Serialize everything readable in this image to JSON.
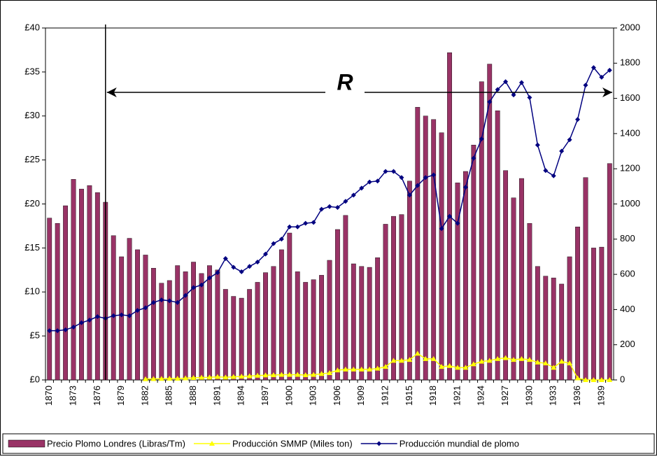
{
  "chart_data": {
    "type": "bar-line",
    "annotation": "R",
    "categories": [
      "1870",
      null,
      null,
      "1873",
      null,
      null,
      "1876",
      null,
      null,
      "1879",
      null,
      null,
      "1882",
      null,
      null,
      "1885",
      null,
      null,
      "1888",
      null,
      null,
      "1891",
      null,
      null,
      "1894",
      null,
      null,
      "1897",
      null,
      null,
      "1900",
      null,
      null,
      "1903",
      null,
      null,
      "1906",
      null,
      null,
      "1909",
      null,
      null,
      "1912",
      null,
      null,
      "1915",
      null,
      null,
      "1918",
      null,
      null,
      "1921",
      null,
      null,
      "1924",
      null,
      null,
      "1927",
      null,
      null,
      "1930",
      null,
      null,
      "1933",
      null,
      null,
      "1936",
      null,
      null,
      "1939",
      null
    ],
    "series": [
      {
        "name": "Precio Plomo Londres (Libras/Tm)",
        "color": "#993366",
        "kind": "bar",
        "values": [
          18.4,
          17.8,
          19.8,
          22.8,
          21.7,
          22.1,
          21.3,
          20.2,
          16.4,
          14.0,
          16.1,
          14.8,
          14.2,
          12.7,
          11.0,
          11.3,
          13.0,
          12.3,
          13.4,
          12.1,
          13.0,
          12.5,
          10.3,
          9.5,
          9.3,
          10.3,
          11.1,
          12.2,
          12.9,
          14.8,
          16.7,
          12.3,
          11.1,
          11.4,
          11.9,
          13.6,
          17.1,
          18.7,
          13.2,
          12.9,
          12.8,
          13.9,
          17.7,
          18.6,
          18.8,
          22.6,
          31.0,
          30.0,
          29.6,
          28.1,
          37.2,
          22.4,
          23.7,
          26.7,
          33.9,
          35.9,
          30.6,
          23.8,
          20.7,
          22.9,
          17.8,
          12.9,
          11.8,
          11.6,
          10.9,
          14.0,
          17.4,
          23.0,
          15.0,
          15.1,
          24.6
        ]
      },
      {
        "name": "Producción SMMP (Miles ton)",
        "color": "#ffff00",
        "kind": "line",
        "marker": "triangle",
        "axis": "y2",
        "values": [
          null,
          null,
          null,
          null,
          null,
          null,
          null,
          null,
          null,
          null,
          null,
          null,
          5,
          6,
          7,
          8,
          8,
          10,
          12,
          14,
          15,
          18,
          15,
          18,
          20,
          22,
          25,
          27,
          28,
          30,
          30,
          30,
          28,
          30,
          35,
          40,
          55,
          60,
          60,
          60,
          60,
          65,
          75,
          110,
          110,
          115,
          150,
          120,
          120,
          75,
          80,
          70,
          70,
          90,
          105,
          110,
          120,
          125,
          115,
          120,
          115,
          100,
          95,
          70,
          105,
          95,
          10,
          0,
          0,
          0,
          0
        ]
      },
      {
        "name": "Producción mundial de plomo",
        "color": "#000080",
        "kind": "line",
        "marker": "diamond",
        "axis": "y2",
        "values": [
          280,
          280,
          285,
          300,
          325,
          340,
          360,
          350,
          365,
          370,
          365,
          395,
          410,
          440,
          455,
          450,
          440,
          480,
          525,
          540,
          580,
          610,
          690,
          640,
          615,
          645,
          670,
          715,
          775,
          800,
          870,
          870,
          890,
          895,
          970,
          985,
          980,
          1015,
          1050,
          1090,
          1125,
          1130,
          1185,
          1185,
          1150,
          1050,
          1105,
          1150,
          1165,
          860,
          930,
          890,
          1095,
          1260,
          1370,
          1580,
          1650,
          1695,
          1620,
          1690,
          1605,
          1335,
          1190,
          1160,
          1300,
          1365,
          1480,
          1675,
          1775,
          1720,
          1760
        ]
      }
    ],
    "ylim": [
      0,
      40
    ],
    "yticks": [
      {
        "value": 0,
        "label": "£0"
      },
      {
        "value": 5,
        "label": "£5"
      },
      {
        "value": 10,
        "label": "£10"
      },
      {
        "value": 15,
        "label": "£15"
      },
      {
        "value": 20,
        "label": "£20"
      },
      {
        "value": 25,
        "label": "£25"
      },
      {
        "value": 30,
        "label": "£30"
      },
      {
        "value": 35,
        "label": "£35"
      },
      {
        "value": 40,
        "label": "£40"
      }
    ],
    "y2lim": [
      0,
      2000
    ],
    "y2ticks": [
      0,
      200,
      400,
      600,
      800,
      1000,
      1200,
      1400,
      1600,
      1800,
      2000
    ]
  }
}
